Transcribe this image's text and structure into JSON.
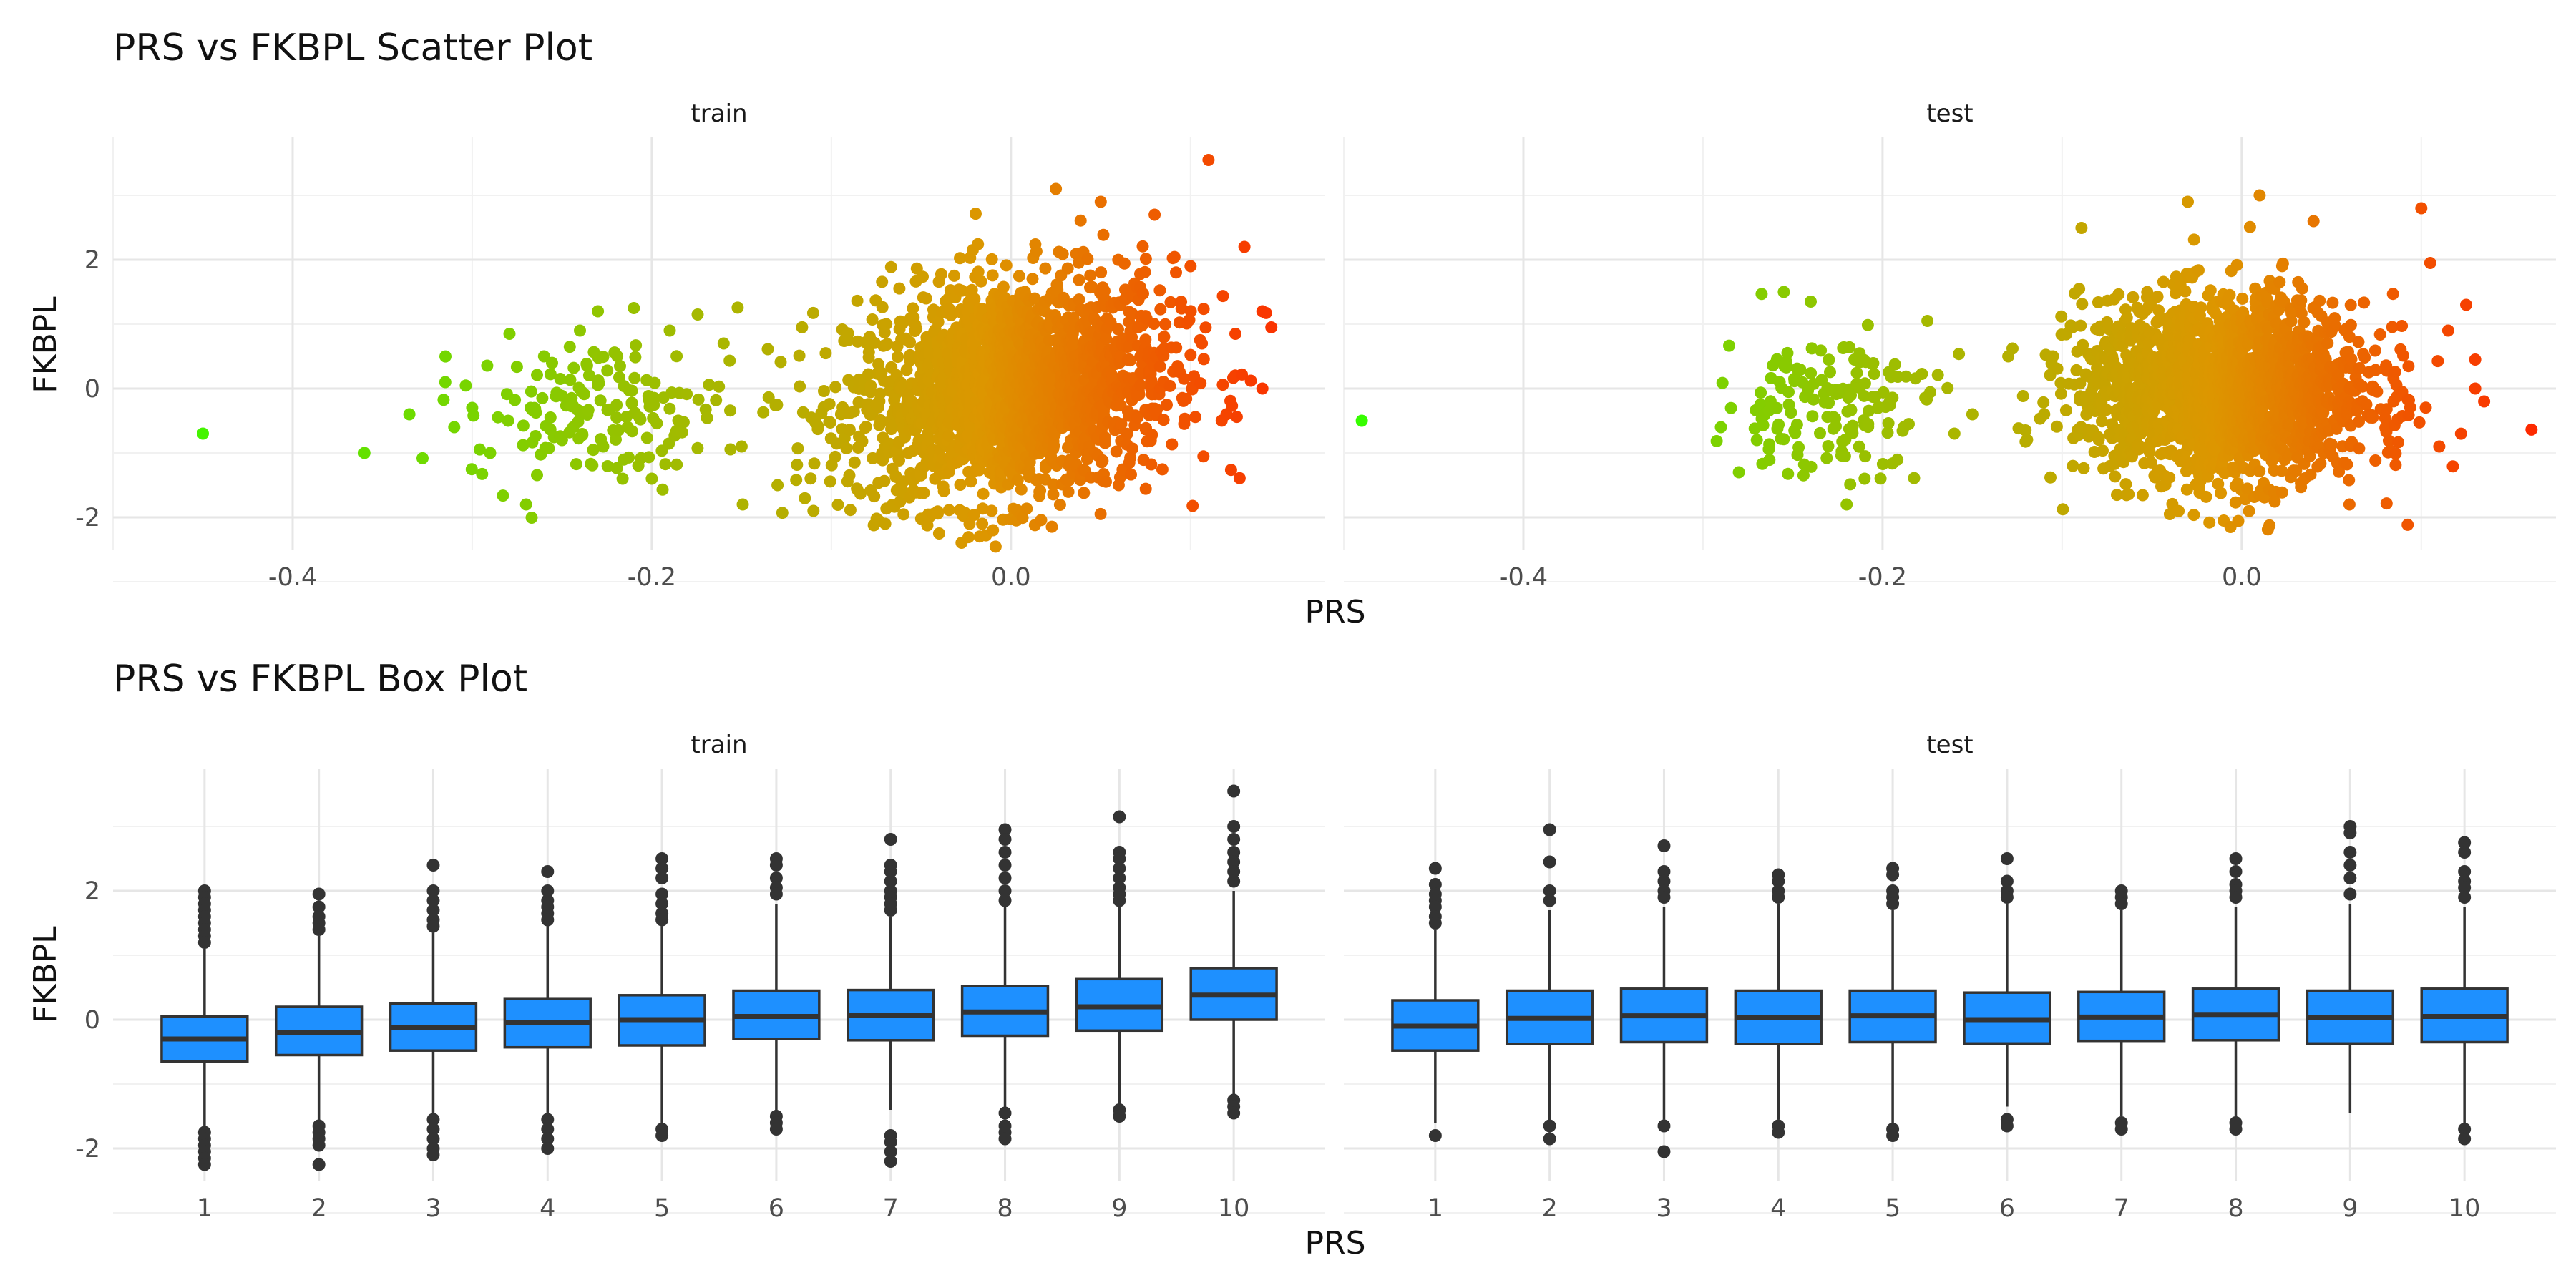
{
  "chart_data": [
    {
      "type": "scatter",
      "title": "PRS vs FKBPL Scatter Plot",
      "xlabel": "PRS",
      "ylabel": "FKBPL",
      "facets": [
        "train",
        "test"
      ],
      "xlim": [
        -0.5,
        0.175
      ],
      "ylim": [
        -2.5,
        3.9
      ],
      "x_ticks": [
        -0.4,
        -0.2,
        0.0
      ],
      "x_tick_labels": [
        "-0.4",
        "-0.2",
        "0.0"
      ],
      "y_ticks": [
        -2,
        0,
        2
      ],
      "y_tick_labels": [
        "-2",
        "0",
        "2"
      ],
      "grid": true,
      "color_scale": {
        "low": "#33ff00",
        "high": "#ff2200",
        "by": "PRS"
      },
      "series": [
        {
          "name": "train",
          "points": [
            [
              -0.45,
              -0.7
            ],
            [
              -0.36,
              -1.0
            ],
            [
              -0.335,
              -0.4
            ],
            [
              -0.315,
              0.1
            ],
            [
              -0.31,
              -0.6
            ],
            [
              -0.3,
              -0.3
            ],
            [
              -0.29,
              -1.0
            ],
            [
              -0.28,
              -0.5
            ],
            [
              -0.27,
              -1.8
            ],
            [
              -0.26,
              0.5
            ],
            [
              -0.25,
              -0.8
            ],
            [
              -0.24,
              0.9
            ],
            [
              -0.23,
              1.2
            ],
            [
              -0.21,
              1.25
            ],
            [
              -0.2,
              -1.4
            ],
            [
              -0.19,
              0.9
            ],
            [
              -0.16,
              0.7
            ],
            [
              -0.15,
              -0.9
            ],
            [
              -0.13,
              -1.5
            ],
            [
              -0.11,
              -1.9
            ],
            [
              -0.07,
              -2.1
            ],
            [
              -0.04,
              -2.25
            ],
            [
              -0.01,
              -2.2
            ],
            [
              0.025,
              3.1
            ],
            [
              0.05,
              2.9
            ],
            [
              0.08,
              2.7
            ],
            [
              0.11,
              3.55
            ],
            [
              0.13,
              2.2
            ],
            [
              0.14,
              1.2
            ],
            [
              0.145,
              0.95
            ],
            [
              0.14,
              0.0
            ],
            [
              0.12,
              -0.4
            ],
            [
              0.125,
              0.85
            ],
            [
              0.06,
              -1.5
            ],
            [
              0.1,
              1.9
            ]
          ],
          "cloud": {
            "x_mean": 0.0,
            "x_sd": 0.045,
            "y_mean": 0.0,
            "y_sd": 0.85,
            "slope": 3.5
          },
          "tail_cluster": {
            "x_mean": -0.23,
            "x_sd": 0.035,
            "y_mean": -0.35,
            "y_sd": 0.55
          }
        },
        {
          "name": "test",
          "points": [
            [
              -0.49,
              -0.5
            ],
            [
              -0.29,
              -0.6
            ],
            [
              -0.28,
              -1.3
            ],
            [
              -0.27,
              -0.8
            ],
            [
              -0.255,
              1.5
            ],
            [
              -0.24,
              1.35
            ],
            [
              -0.22,
              -1.8
            ],
            [
              -0.21,
              -1.4
            ],
            [
              -0.175,
              1.05
            ],
            [
              -0.16,
              -0.7
            ],
            [
              -0.15,
              -0.4
            ],
            [
              -0.13,
              0.5
            ],
            [
              -0.11,
              -0.4
            ],
            [
              -0.04,
              -1.95
            ],
            [
              -0.03,
              2.9
            ],
            [
              -0.01,
              -2.05
            ],
            [
              0.01,
              3.0
            ],
            [
              0.04,
              2.6
            ],
            [
              0.06,
              -1.8
            ],
            [
              0.1,
              2.8
            ],
            [
              0.125,
              1.3
            ],
            [
              0.13,
              0.0
            ],
            [
              0.135,
              -0.2
            ],
            [
              0.13,
              0.45
            ],
            [
              0.11,
              -0.9
            ],
            [
              0.105,
              1.95
            ],
            [
              0.115,
              0.9
            ]
          ],
          "cloud": {
            "x_mean": -0.01,
            "x_sd": 0.04,
            "y_mean": 0.0,
            "y_sd": 0.7,
            "slope": 0.0
          },
          "tail_cluster": {
            "x_mean": -0.23,
            "x_sd": 0.03,
            "y_mean": -0.2,
            "y_sd": 0.55
          }
        }
      ]
    },
    {
      "type": "box",
      "title": "PRS vs FKBPL Box Plot",
      "xlabel": "PRS",
      "ylabel": "FKBPL",
      "facets": [
        "train",
        "test"
      ],
      "categories": [
        "1",
        "2",
        "3",
        "4",
        "5",
        "6",
        "7",
        "8",
        "9",
        "10"
      ],
      "ylim": [
        -2.5,
        3.9
      ],
      "y_ticks": [
        -2,
        0,
        2
      ],
      "y_tick_labels": [
        "-2",
        "0",
        "2"
      ],
      "grid": true,
      "box_fill": "#1e90ff",
      "box_stroke": "#333333",
      "series": [
        {
          "name": "train",
          "boxes": [
            {
              "q1": -0.65,
              "median": -0.3,
              "q3": 0.05,
              "whisker_low": -1.7,
              "whisker_high": 1.1,
              "outliers": [
                2.0,
                1.9,
                1.8,
                1.7,
                1.6,
                1.5,
                1.4,
                1.3,
                1.2,
                -1.75,
                -1.85,
                -1.95,
                -2.05,
                -2.15,
                -2.25
              ]
            },
            {
              "q1": -0.55,
              "median": -0.2,
              "q3": 0.2,
              "whisker_low": -1.6,
              "whisker_high": 1.3,
              "outliers": [
                1.95,
                1.75,
                1.6,
                1.5,
                1.4,
                -1.65,
                -1.75,
                -1.85,
                -1.95,
                -2.25
              ]
            },
            {
              "q1": -0.48,
              "median": -0.12,
              "q3": 0.25,
              "whisker_low": -1.5,
              "whisker_high": 1.35,
              "outliers": [
                2.4,
                2.0,
                1.85,
                1.7,
                1.55,
                1.45,
                -1.55,
                -1.7,
                -1.85,
                -2.0,
                -2.1
              ]
            },
            {
              "q1": -0.43,
              "median": -0.05,
              "q3": 0.32,
              "whisker_low": -1.5,
              "whisker_high": 1.5,
              "outliers": [
                2.3,
                2.0,
                1.85,
                1.75,
                1.65,
                1.55,
                -1.55,
                -1.7,
                -1.85,
                -2.0
              ]
            },
            {
              "q1": -0.4,
              "median": 0.0,
              "q3": 0.38,
              "whisker_low": -1.65,
              "whisker_high": 1.45,
              "outliers": [
                2.5,
                2.35,
                2.2,
                1.95,
                1.8,
                1.65,
                1.55,
                -1.7,
                -1.8
              ]
            },
            {
              "q1": -0.3,
              "median": 0.05,
              "q3": 0.45,
              "whisker_low": -1.45,
              "whisker_high": 1.8,
              "outliers": [
                2.5,
                2.4,
                2.2,
                2.05,
                1.95,
                -1.5,
                -1.6,
                -1.7
              ]
            },
            {
              "q1": -0.32,
              "median": 0.07,
              "q3": 0.46,
              "whisker_low": -1.4,
              "whisker_high": 1.6,
              "outliers": [
                2.8,
                2.4,
                2.3,
                2.15,
                2.0,
                1.9,
                1.8,
                1.7,
                -1.8,
                -1.9,
                -2.05,
                -2.2
              ]
            },
            {
              "q1": -0.25,
              "median": 0.12,
              "q3": 0.52,
              "whisker_low": -1.4,
              "whisker_high": 1.75,
              "outliers": [
                2.95,
                2.8,
                2.6,
                2.4,
                2.2,
                2.0,
                1.85,
                -1.45,
                -1.65,
                -1.75,
                -1.85
              ]
            },
            {
              "q1": -0.17,
              "median": 0.2,
              "q3": 0.63,
              "whisker_low": -1.4,
              "whisker_high": 1.8,
              "outliers": [
                3.15,
                2.6,
                2.5,
                2.35,
                2.2,
                2.05,
                1.95,
                1.85,
                -1.4,
                -1.5
              ]
            },
            {
              "q1": 0.0,
              "median": 0.38,
              "q3": 0.8,
              "whisker_low": -1.2,
              "whisker_high": 2.0,
              "outliers": [
                3.55,
                3.0,
                2.8,
                2.6,
                2.45,
                2.3,
                2.15,
                -1.25,
                -1.35,
                -1.45
              ]
            }
          ]
        },
        {
          "name": "test",
          "boxes": [
            {
              "q1": -0.48,
              "median": -0.1,
              "q3": 0.3,
              "whisker_low": -1.6,
              "whisker_high": 1.4,
              "outliers": [
                2.35,
                2.1,
                1.95,
                1.85,
                1.75,
                1.6,
                1.5,
                -1.8
              ]
            },
            {
              "q1": -0.38,
              "median": 0.02,
              "q3": 0.45,
              "whisker_low": -1.6,
              "whisker_high": 1.7,
              "outliers": [
                2.95,
                2.45,
                2.0,
                1.85,
                -1.65,
                -1.85
              ]
            },
            {
              "q1": -0.35,
              "median": 0.06,
              "q3": 0.48,
              "whisker_low": -1.55,
              "whisker_high": 1.75,
              "outliers": [
                2.7,
                2.3,
                2.15,
                2.0,
                1.9,
                -1.65,
                -2.05
              ]
            },
            {
              "q1": -0.38,
              "median": 0.03,
              "q3": 0.45,
              "whisker_low": -1.55,
              "whisker_high": 1.8,
              "outliers": [
                2.25,
                2.15,
                2.0,
                1.9,
                -1.65,
                -1.75
              ]
            },
            {
              "q1": -0.35,
              "median": 0.06,
              "q3": 0.45,
              "whisker_low": -1.6,
              "whisker_high": 1.7,
              "outliers": [
                2.35,
                2.25,
                2.0,
                1.9,
                1.8,
                -1.7,
                -1.8
              ]
            },
            {
              "q1": -0.37,
              "median": 0.0,
              "q3": 0.42,
              "whisker_low": -1.35,
              "whisker_high": 1.8,
              "outliers": [
                2.5,
                2.15,
                2.0,
                1.9,
                -1.55,
                -1.65
              ]
            },
            {
              "q1": -0.33,
              "median": 0.04,
              "q3": 0.43,
              "whisker_low": -1.5,
              "whisker_high": 1.7,
              "outliers": [
                2.0,
                1.9,
                1.8,
                -1.6,
                -1.7
              ]
            },
            {
              "q1": -0.32,
              "median": 0.08,
              "q3": 0.48,
              "whisker_low": -1.55,
              "whisker_high": 1.75,
              "outliers": [
                2.5,
                2.3,
                2.1,
                2.0,
                1.9,
                -1.6,
                -1.7
              ]
            },
            {
              "q1": -0.37,
              "median": 0.03,
              "q3": 0.45,
              "whisker_low": -1.45,
              "whisker_high": 1.8,
              "outliers": [
                3.0,
                2.9,
                2.6,
                2.4,
                2.2,
                1.95
              ]
            },
            {
              "q1": -0.35,
              "median": 0.05,
              "q3": 0.48,
              "whisker_low": -1.6,
              "whisker_high": 1.75,
              "outliers": [
                2.75,
                2.6,
                2.3,
                2.15,
                2.05,
                1.9,
                -1.7,
                -1.85
              ]
            }
          ]
        }
      ]
    }
  ]
}
